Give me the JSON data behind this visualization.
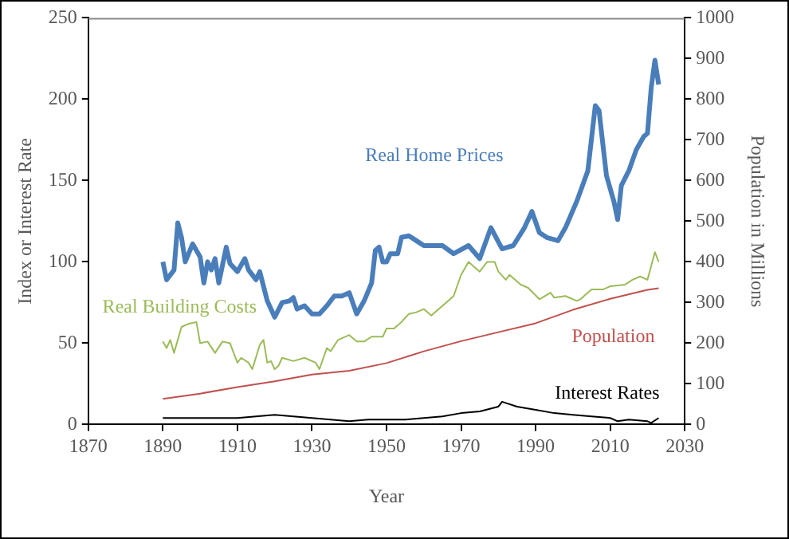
{
  "chart_data": {
    "type": "line",
    "xlabel": "Year",
    "ylabel": "Index or Interest Rate",
    "y2label": "Population in Millions",
    "xlim": [
      1870,
      2030
    ],
    "xticks": [
      1870,
      1890,
      1910,
      1930,
      1950,
      1970,
      1990,
      2010,
      2030
    ],
    "ylim": [
      0,
      250
    ],
    "yticks": [
      0,
      50,
      100,
      150,
      200,
      250
    ],
    "y2lim": [
      0,
      1000
    ],
    "y2ticks": [
      0,
      100,
      200,
      300,
      400,
      500,
      600,
      700,
      800,
      900,
      1000
    ],
    "grid": false,
    "legend": false,
    "marker": "none",
    "series": [
      {
        "name": "Real Home Prices",
        "color": "#4a7ebb",
        "x": [
          1890,
          1891,
          1893,
          1894,
          1895,
          1896,
          1898,
          1900,
          1901,
          1902,
          1903,
          1904,
          1905,
          1907,
          1908,
          1910,
          1912,
          1913,
          1915,
          1916,
          1918,
          1920,
          1922,
          1924,
          1925,
          1926,
          1928,
          1930,
          1932,
          1934,
          1936,
          1938,
          1940,
          1942,
          1944,
          1946,
          1947,
          1948,
          1949,
          1950,
          1951,
          1953,
          1954,
          1956,
          1958,
          1960,
          1965,
          1968,
          1972,
          1975,
          1978,
          1981,
          1984,
          1987,
          1989,
          1991,
          1993,
          1996,
          1998,
          2001,
          2004,
          2006,
          2007,
          2009,
          2011,
          2012,
          2013,
          2015,
          2017,
          2019,
          2020,
          2021,
          2022,
          2023
        ],
        "values": [
          100,
          89,
          95,
          124,
          115,
          100,
          111,
          103,
          87,
          100,
          95,
          102,
          87,
          109,
          99,
          94,
          102,
          95,
          89,
          94,
          76,
          66,
          75,
          76,
          78,
          71,
          73,
          68,
          68,
          73,
          79,
          79,
          81,
          68,
          76,
          87,
          107,
          109,
          100,
          100,
          105,
          105,
          115,
          116,
          113,
          110,
          110,
          105,
          110,
          102,
          121,
          108,
          110,
          121,
          131,
          118,
          115,
          113,
          121,
          137,
          156,
          196,
          193,
          153,
          137,
          126,
          147,
          156,
          169,
          177,
          179,
          207,
          224,
          209
        ]
      },
      {
        "name": "Real Building Costs",
        "color": "#9bbb59",
        "x": [
          1890,
          1891,
          1892,
          1893,
          1895,
          1897,
          1899,
          1900,
          1902,
          1904,
          1906,
          1908,
          1910,
          1911,
          1913,
          1914,
          1916,
          1917,
          1918,
          1919,
          1920,
          1921,
          1922,
          1925,
          1928,
          1931,
          1932,
          1934,
          1935,
          1937,
          1940,
          1942,
          1944,
          1946,
          1949,
          1950,
          1952,
          1954,
          1956,
          1958,
          1960,
          1962,
          1966,
          1968,
          1970,
          1972,
          1975,
          1977,
          1979,
          1980,
          1982,
          1983,
          1986,
          1988,
          1991,
          1994,
          1995,
          1998,
          2001,
          2002,
          2005,
          2008,
          2010,
          2014,
          2016,
          2018,
          2020,
          2022,
          2023
        ],
        "values": [
          51,
          47,
          52,
          44,
          60,
          62,
          63,
          50,
          51,
          44,
          51,
          50,
          38,
          41,
          38,
          34,
          49,
          52,
          38,
          39,
          34,
          36,
          41,
          39,
          41,
          38,
          34,
          47,
          45,
          52,
          55,
          51,
          51,
          54,
          54,
          59,
          59,
          63,
          68,
          69,
          71,
          67,
          75,
          79,
          92,
          100,
          94,
          100,
          100,
          94,
          89,
          92,
          86,
          84,
          77,
          81,
          78,
          79,
          76,
          77,
          83,
          83,
          85,
          86,
          89,
          91,
          89,
          106,
          100
        ]
      },
      {
        "name": "Population",
        "color": "#c0504d",
        "axis": "y2",
        "x": [
          1890,
          1900,
          1910,
          1920,
          1930,
          1940,
          1950,
          1960,
          1970,
          1980,
          1990,
          2000,
          2010,
          2020,
          2023
        ],
        "values": [
          63,
          76,
          92,
          106,
          123,
          132,
          151,
          180,
          205,
          227,
          249,
          282,
          309,
          331,
          335
        ]
      },
      {
        "name": "Interest Rates",
        "color": "#000000",
        "x": [
          1890,
          1900,
          1910,
          1915,
          1920,
          1925,
          1930,
          1935,
          1940,
          1945,
          1950,
          1955,
          1960,
          1965,
          1970,
          1975,
          1980,
          1981,
          1985,
          1990,
          1995,
          2000,
          2005,
          2010,
          2012,
          2015,
          2020,
          2021,
          2023
        ],
        "values": [
          4,
          4,
          4,
          5,
          6,
          5,
          4,
          3,
          2,
          3,
          3,
          3,
          4,
          5,
          7,
          8,
          11,
          14,
          11,
          9,
          7,
          6,
          5,
          4,
          2,
          3,
          2,
          1,
          4
        ]
      }
    ]
  }
}
